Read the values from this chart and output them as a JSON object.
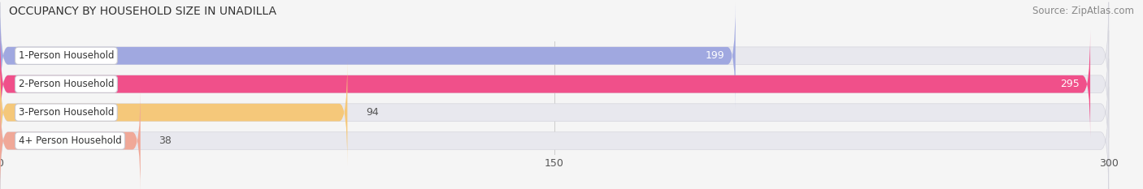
{
  "title": "OCCUPANCY BY HOUSEHOLD SIZE IN UNADILLA",
  "source": "Source: ZipAtlas.com",
  "categories": [
    "1-Person Household",
    "2-Person Household",
    "3-Person Household",
    "4+ Person Household"
  ],
  "values": [
    199,
    295,
    94,
    38
  ],
  "bar_colors": [
    "#a0a8e0",
    "#f0508a",
    "#f5c87a",
    "#f0a898"
  ],
  "bar_bg_color": "#e8e8ee",
  "xlim": [
    0,
    300
  ],
  "xticks": [
    0,
    150,
    300
  ],
  "background_color": "#f5f5f5",
  "title_fontsize": 10,
  "source_fontsize": 8.5,
  "bar_label_fontsize": 9,
  "category_fontsize": 8.5,
  "bar_height": 0.62,
  "figsize": [
    14.06,
    2.33
  ],
  "dpi": 100
}
